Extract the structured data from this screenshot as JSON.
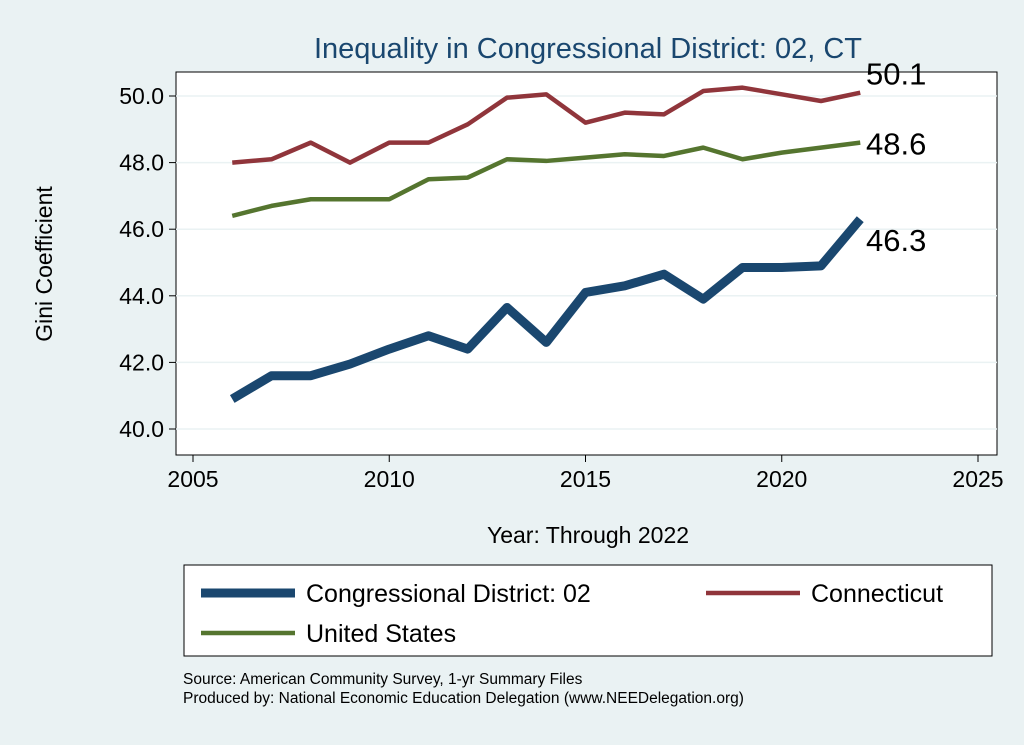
{
  "chart_data": {
    "type": "line",
    "title": "Inequality in Congressional District:  02, CT",
    "xlabel": "Year: Through 2022",
    "ylabel": "Gini Coefficient",
    "xlim": [
      2005,
      2025
    ],
    "ylim": [
      40,
      50
    ],
    "xticks": [
      "2005",
      "2010",
      "2015",
      "2020",
      "2025"
    ],
    "yticks": [
      "40.0",
      "42.0",
      "44.0",
      "46.0",
      "48.0",
      "50.0"
    ],
    "x": [
      2006,
      2007,
      2008,
      2009,
      2010,
      2011,
      2012,
      2013,
      2014,
      2015,
      2016,
      2017,
      2018,
      2019,
      2020,
      2021,
      2022
    ],
    "series": [
      {
        "name": "Congressional District:  02",
        "color": "#1a476f",
        "end_label": "46.3",
        "values": [
          40.9,
          41.6,
          41.6,
          41.95,
          42.4,
          42.8,
          42.4,
          43.65,
          42.6,
          44.1,
          44.3,
          44.65,
          43.9,
          44.85,
          44.85,
          44.9,
          46.3
        ]
      },
      {
        "name": "Connecticut",
        "color": "#90353b",
        "end_label": "50.1",
        "values": [
          48.0,
          48.1,
          48.6,
          48.0,
          48.6,
          48.6,
          49.15,
          49.95,
          50.05,
          49.2,
          49.5,
          49.45,
          50.15,
          50.25,
          50.05,
          49.85,
          50.1
        ]
      },
      {
        "name": "United States",
        "color": "#55752f",
        "end_label": "48.6",
        "values": [
          46.4,
          46.7,
          46.9,
          46.9,
          46.9,
          47.5,
          47.55,
          48.1,
          48.05,
          48.15,
          48.25,
          48.2,
          48.45,
          48.1,
          48.3,
          48.45,
          48.6
        ]
      }
    ],
    "grid": true,
    "legend": "bottom"
  },
  "source": "Source: American Community Survey, 1-yr Summary Files",
  "produced": "Produced by: National Economic Education Delegation (www.NEEDelegation.org)"
}
